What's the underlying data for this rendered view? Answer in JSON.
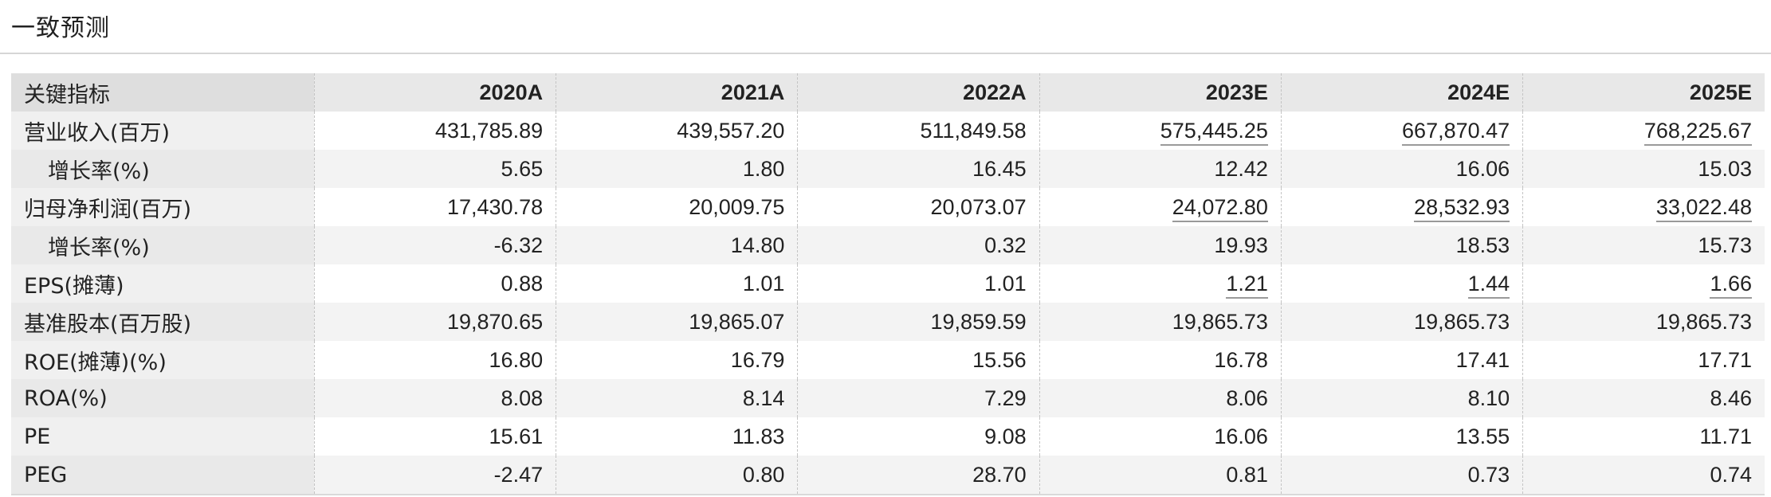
{
  "section": {
    "title": "一致预测"
  },
  "table": {
    "headers": [
      "关键指标",
      "2020A",
      "2021A",
      "2022A",
      "2023E",
      "2024E",
      "2025E"
    ],
    "rows": [
      {
        "label": "营业收入(百万)",
        "values": [
          "431,785.89",
          "439,557.20",
          "511,849.58",
          "575,445.25",
          "667,870.47",
          "768,225.67"
        ]
      },
      {
        "label": "增长率(%)",
        "values": [
          "5.65",
          "1.80",
          "16.45",
          "12.42",
          "16.06",
          "15.03"
        ]
      },
      {
        "label": "归母净利润(百万)",
        "values": [
          "17,430.78",
          "20,009.75",
          "20,073.07",
          "24,072.80",
          "28,532.93",
          "33,022.48"
        ]
      },
      {
        "label": "增长率(%)",
        "values": [
          "-6.32",
          "14.80",
          "0.32",
          "19.93",
          "18.53",
          "15.73"
        ]
      },
      {
        "label": "EPS(摊薄)",
        "values": [
          "0.88",
          "1.01",
          "1.01",
          "1.21",
          "1.44",
          "1.66"
        ]
      },
      {
        "label": "基准股本(百万股)",
        "values": [
          "19,870.65",
          "19,865.07",
          "19,859.59",
          "19,865.73",
          "19,865.73",
          "19,865.73"
        ]
      },
      {
        "label": "ROE(摊薄)(%)",
        "values": [
          "16.80",
          "16.79",
          "15.56",
          "16.78",
          "17.41",
          "17.71"
        ]
      },
      {
        "label": "ROA(%)",
        "values": [
          "8.08",
          "8.14",
          "7.29",
          "8.06",
          "8.10",
          "8.46"
        ]
      },
      {
        "label": "PE",
        "values": [
          "15.61",
          "11.83",
          "9.08",
          "16.06",
          "13.55",
          "11.71"
        ]
      },
      {
        "label": "PEG",
        "values": [
          "-2.47",
          "0.80",
          "28.70",
          "0.81",
          "0.73",
          "0.74"
        ]
      }
    ]
  }
}
